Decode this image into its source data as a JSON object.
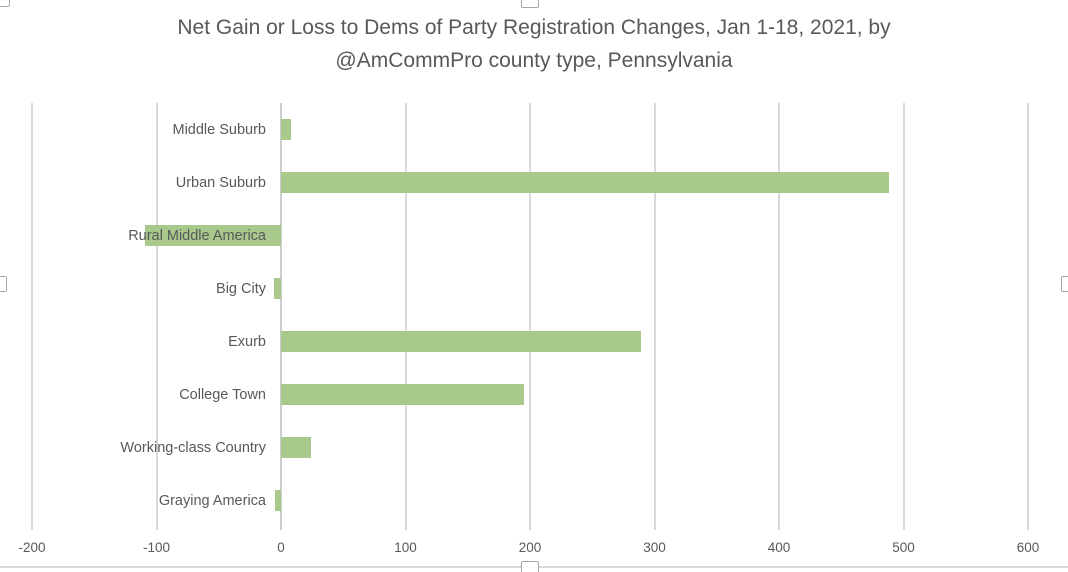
{
  "chart": {
    "title_line1": "Net Gain or Loss to Dems of Party Registration Changes, Jan 1-18, 2021, by",
    "title_line2": "@AmCommPro county type, Pennsylvania"
  },
  "chart_data": {
    "type": "bar",
    "orientation": "horizontal",
    "title": "Net Gain or Loss to Dems of Party Registration Changes, Jan 1-18, 2021, by @AmCommPro county type, Pennsylvania",
    "categories": [
      "Middle Suburb",
      "Urban Suburb",
      "Rural Middle America",
      "Big City",
      "Exurb",
      "College Town",
      "Working-class Country",
      "Graying America"
    ],
    "values": [
      8,
      488,
      -109,
      -6,
      289,
      195,
      24,
      -5
    ],
    "xlabel": "",
    "ylabel": "",
    "xlim": [
      -200,
      600
    ],
    "xticks": [
      -200,
      -100,
      0,
      100,
      200,
      300,
      400,
      500,
      600
    ],
    "xtick_labels": [
      "-200",
      "-100",
      "0",
      "100",
      "200",
      "300",
      "400",
      "500",
      "600"
    ],
    "grid": true,
    "legend": false,
    "bar_color": "#a9c88c",
    "text_color": "#595959",
    "gridline_color": "#d9d9d9",
    "axis_line_color": "#cdcdcd"
  },
  "selection": {
    "state": "chart-selected",
    "handles": [
      "top-left",
      "top-center",
      "bottom-center",
      "left-middle",
      "right-middle"
    ]
  }
}
